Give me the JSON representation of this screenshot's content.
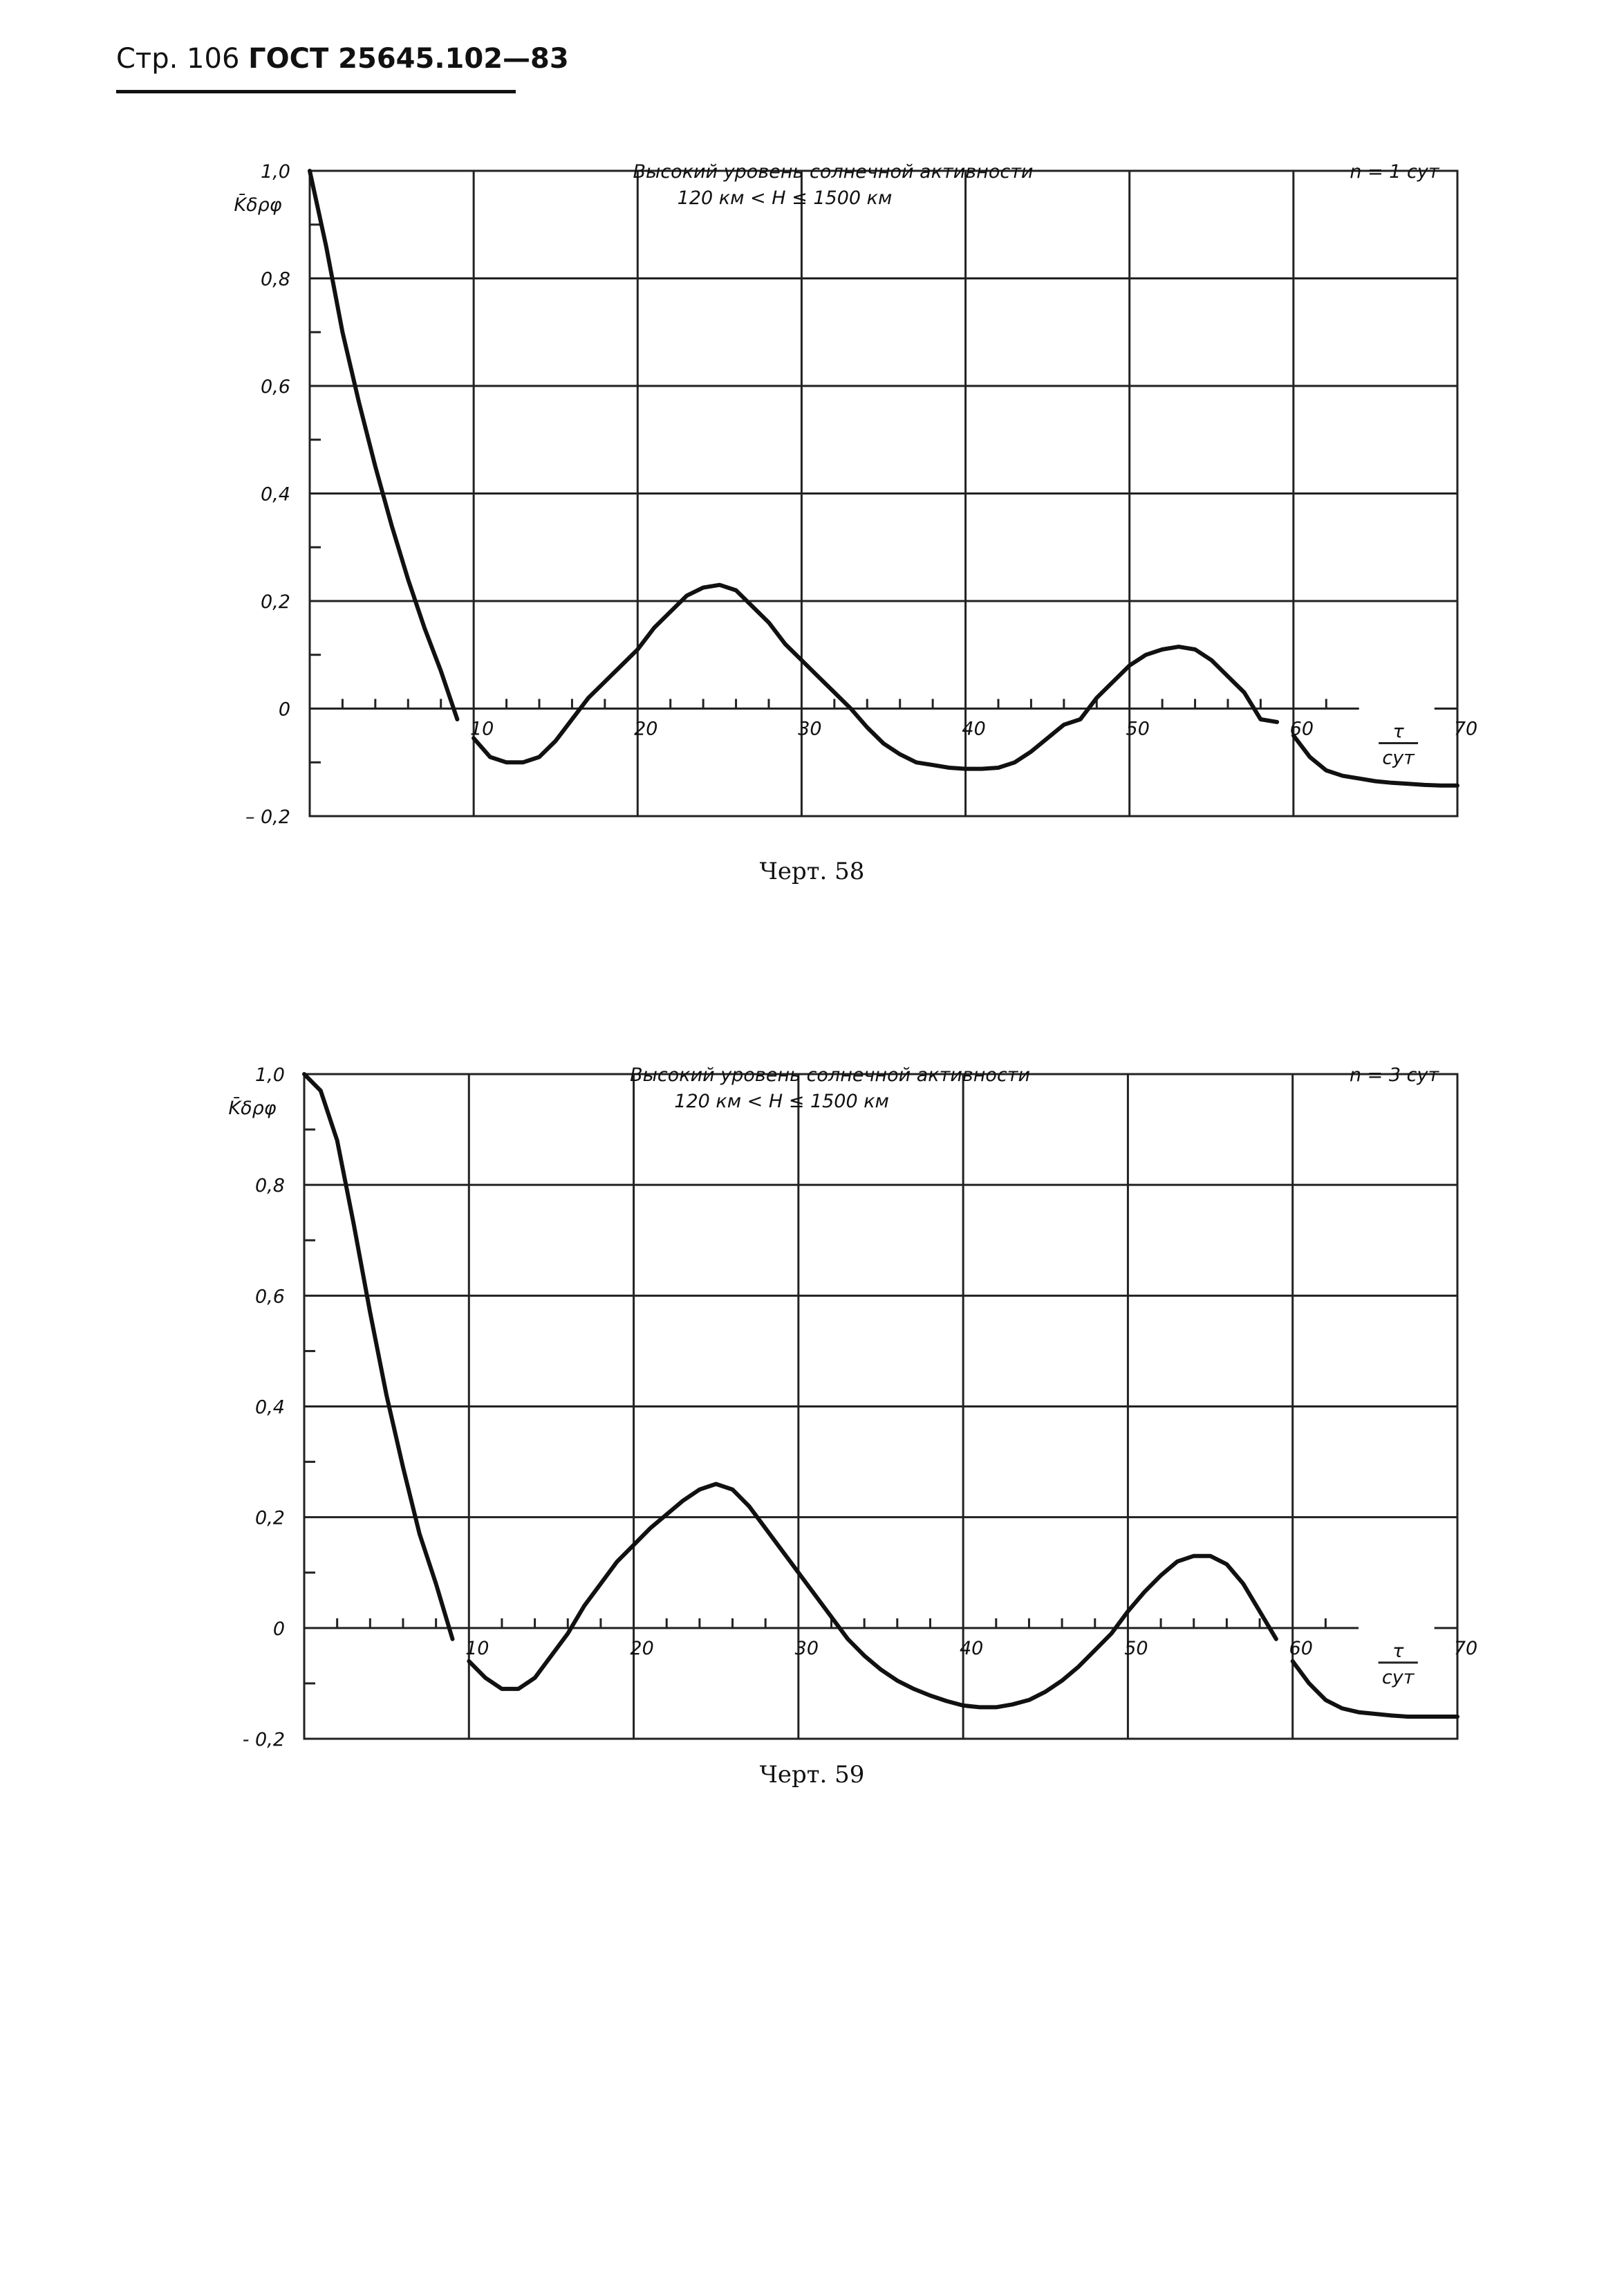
{
  "header": {
    "prefix": "Стр. 106",
    "standard": "ГОСТ 25645.102—83"
  },
  "chart_data": [
    {
      "type": "line",
      "title": "Высокий уровень солнечной активности",
      "subtitle": "120 км < H ≤ 1500 км",
      "legend": "n = 1 сут",
      "ylabel": "K̄δρφ",
      "xlabel_num": "τ",
      "xlabel_den": "сут",
      "xlim": [
        0,
        70
      ],
      "ylim": [
        -0.2,
        1.0
      ],
      "x_ticks": [
        "10",
        "20",
        "30",
        "40",
        "50",
        "60",
        "70"
      ],
      "y_ticks": [
        "1,0",
        "0,8",
        "0,6",
        "0,4",
        "0,2",
        "0",
        "– 0,2"
      ],
      "grid": true,
      "caption": "Черт. 58",
      "series": [
        {
          "segments": [
            {
              "x": [
                0,
                1,
                2,
                3,
                4,
                5,
                6,
                7,
                8,
                9
              ],
              "y": [
                1.0,
                0.86,
                0.7,
                0.57,
                0.45,
                0.34,
                0.24,
                0.15,
                0.07,
                -0.02
              ]
            },
            {
              "x": [
                10,
                11,
                12,
                13,
                14,
                15,
                16,
                17,
                18,
                19,
                20,
                21,
                22,
                23,
                24,
                25,
                26,
                27,
                28,
                29,
                30,
                31,
                32,
                33,
                34,
                35,
                36,
                37,
                38,
                39,
                40,
                41,
                42,
                43,
                44,
                45,
                46,
                47,
                48,
                49,
                50,
                51,
                52,
                53,
                54,
                55,
                56,
                57,
                58,
                59
              ],
              "y": [
                -0.055,
                -0.09,
                -0.1,
                -0.1,
                -0.09,
                -0.06,
                -0.02,
                0.02,
                0.05,
                0.08,
                0.11,
                0.15,
                0.18,
                0.21,
                0.225,
                0.23,
                0.22,
                0.19,
                0.16,
                0.12,
                0.09,
                0.06,
                0.03,
                0.0,
                -0.035,
                -0.065,
                -0.085,
                -0.1,
                -0.105,
                -0.11,
                -0.112,
                -0.112,
                -0.11,
                -0.1,
                -0.08,
                -0.055,
                -0.03,
                -0.02,
                0.02,
                0.05,
                0.08,
                0.1,
                0.11,
                0.115,
                0.11,
                0.09,
                0.06,
                0.03,
                -0.02,
                -0.025
              ]
            },
            {
              "x": [
                60,
                61,
                62,
                63,
                64,
                65,
                66,
                67,
                68,
                69,
                70
              ],
              "y": [
                -0.05,
                -0.09,
                -0.115,
                -0.125,
                -0.13,
                -0.135,
                -0.138,
                -0.14,
                -0.142,
                -0.143,
                -0.143
              ]
            }
          ]
        }
      ]
    },
    {
      "type": "line",
      "title": "Высокий уровень солнечной активности",
      "subtitle": "120 км < H ≤ 1500 км",
      "legend": "n = 3 сут",
      "ylabel": "K̄δρφ",
      "xlabel_num": "τ",
      "xlabel_den": "сут",
      "xlim": [
        0,
        70
      ],
      "ylim": [
        -0.2,
        1.0
      ],
      "x_ticks": [
        "10",
        "20",
        "30",
        "40",
        "50",
        "60",
        "70"
      ],
      "y_ticks": [
        "1,0",
        "0,8",
        "0,6",
        "0,4",
        "0,2",
        "0",
        "- 0,2"
      ],
      "grid": true,
      "caption": "Черт. 59",
      "series": [
        {
          "segments": [
            {
              "x": [
                0,
                1,
                2,
                3,
                4,
                5,
                6,
                7,
                8,
                9
              ],
              "y": [
                1.0,
                0.97,
                0.88,
                0.73,
                0.57,
                0.42,
                0.29,
                0.17,
                0.08,
                -0.02
              ]
            },
            {
              "x": [
                10,
                11,
                12,
                13,
                14,
                15,
                16,
                17,
                18,
                19,
                20,
                21,
                22,
                23,
                24,
                25,
                26,
                27,
                28,
                29,
                30,
                31,
                32,
                33,
                34,
                35,
                36,
                37,
                38,
                39,
                40,
                41,
                42,
                43,
                44,
                45,
                46,
                47,
                48,
                49,
                50,
                51,
                52,
                53,
                54,
                55,
                56,
                57,
                58,
                59
              ],
              "y": [
                -0.06,
                -0.09,
                -0.11,
                -0.11,
                -0.09,
                -0.05,
                -0.01,
                0.04,
                0.08,
                0.12,
                0.15,
                0.18,
                0.205,
                0.23,
                0.25,
                0.26,
                0.25,
                0.22,
                0.18,
                0.14,
                0.1,
                0.06,
                0.02,
                -0.02,
                -0.05,
                -0.075,
                -0.095,
                -0.11,
                -0.122,
                -0.132,
                -0.14,
                -0.143,
                -0.143,
                -0.138,
                -0.13,
                -0.115,
                -0.095,
                -0.07,
                -0.04,
                -0.01,
                0.03,
                0.065,
                0.095,
                0.12,
                0.13,
                0.13,
                0.115,
                0.08,
                0.03,
                -0.02
              ]
            },
            {
              "x": [
                60,
                61,
                62,
                63,
                64,
                65,
                66,
                67,
                68,
                69,
                70
              ],
              "y": [
                -0.06,
                -0.1,
                -0.13,
                -0.145,
                -0.152,
                -0.155,
                -0.158,
                -0.16,
                -0.16,
                -0.16,
                -0.16
              ]
            }
          ]
        }
      ]
    }
  ]
}
